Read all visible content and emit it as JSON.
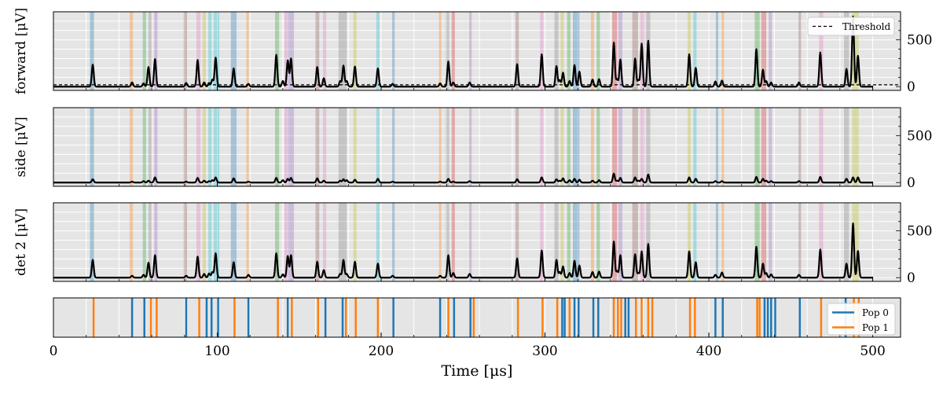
{
  "chart_data": {
    "type": "line",
    "xlabel": "Time [μs]",
    "xlim": [
      0,
      517
    ],
    "xticks": [
      0,
      100,
      200,
      300,
      400,
      500
    ],
    "grid": true,
    "colors": {
      "background": "#e5e5e5",
      "grid": "#ffffff",
      "signal": "#000000",
      "threshold": "#000000",
      "pop0": "#1f77b4",
      "pop1": "#ff7f0e"
    },
    "band_palette": [
      "#1f77b4",
      "#ff7f0e",
      "#2ca02c",
      "#d62728",
      "#9467bd",
      "#8c564b",
      "#e377c2",
      "#7f7f7f",
      "#bcbd22",
      "#17becf"
    ],
    "spike_bands": [
      {
        "x": 23.5,
        "w": 2.5,
        "c": 0
      },
      {
        "x": 47.5,
        "w": 2,
        "c": 1
      },
      {
        "x": 55.5,
        "w": 2,
        "c": 2
      },
      {
        "x": 59,
        "w": 2,
        "c": 7
      },
      {
        "x": 62.5,
        "w": 2,
        "c": 4
      },
      {
        "x": 80.5,
        "w": 2,
        "c": 5
      },
      {
        "x": 88.5,
        "w": 2.5,
        "c": 6
      },
      {
        "x": 92,
        "w": 2,
        "c": 8
      },
      {
        "x": 95.5,
        "w": 2,
        "c": 9
      },
      {
        "x": 99.5,
        "w": 3.5,
        "c": 9
      },
      {
        "x": 110,
        "w": 3.5,
        "c": 0
      },
      {
        "x": 118.5,
        "w": 1.5,
        "c": 1
      },
      {
        "x": 136.5,
        "w": 2.5,
        "c": 2
      },
      {
        "x": 142,
        "w": 2,
        "c": 6
      },
      {
        "x": 145,
        "w": 3.5,
        "c": 4
      },
      {
        "x": 161,
        "w": 2.5,
        "c": 5
      },
      {
        "x": 165.5,
        "w": 2,
        "c": 6
      },
      {
        "x": 176.5,
        "w": 5,
        "c": 7
      },
      {
        "x": 184,
        "w": 2,
        "c": 8
      },
      {
        "x": 198,
        "w": 2,
        "c": 9
      },
      {
        "x": 207.5,
        "w": 1.5,
        "c": 0
      },
      {
        "x": 236,
        "w": 1.5,
        "c": 1
      },
      {
        "x": 240.5,
        "w": 2,
        "c": 7
      },
      {
        "x": 244,
        "w": 2,
        "c": 3
      },
      {
        "x": 254.5,
        "w": 1.5,
        "c": 4
      },
      {
        "x": 283,
        "w": 2,
        "c": 5
      },
      {
        "x": 298,
        "w": 2,
        "c": 6
      },
      {
        "x": 307,
        "w": 2.5,
        "c": 7
      },
      {
        "x": 310.5,
        "w": 2,
        "c": 8
      },
      {
        "x": 314.5,
        "w": 2,
        "c": 2
      },
      {
        "x": 319,
        "w": 4,
        "c": 0
      },
      {
        "x": 329,
        "w": 2,
        "c": 1
      },
      {
        "x": 332.5,
        "w": 2,
        "c": 2
      },
      {
        "x": 342.5,
        "w": 3,
        "c": 3
      },
      {
        "x": 346,
        "w": 2.5,
        "c": 4
      },
      {
        "x": 355,
        "w": 3.5,
        "c": 5
      },
      {
        "x": 359.5,
        "w": 2.5,
        "c": 6
      },
      {
        "x": 363,
        "w": 2.5,
        "c": 7
      },
      {
        "x": 388,
        "w": 2,
        "c": 8
      },
      {
        "x": 391.5,
        "w": 2,
        "c": 9
      },
      {
        "x": 405,
        "w": 1.5,
        "c": 0
      },
      {
        "x": 408.5,
        "w": 1.5,
        "c": 1
      },
      {
        "x": 429.5,
        "w": 3,
        "c": 2
      },
      {
        "x": 433.5,
        "w": 3,
        "c": 3
      },
      {
        "x": 437.5,
        "w": 2,
        "c": 4
      },
      {
        "x": 455.5,
        "w": 1.5,
        "c": 5
      },
      {
        "x": 468.5,
        "w": 2.5,
        "c": 6
      },
      {
        "x": 484,
        "w": 3,
        "c": 7
      },
      {
        "x": 489.5,
        "w": 4,
        "c": 8
      }
    ],
    "spikes": [
      {
        "t": 24,
        "a": [
          235,
          35,
          190
        ]
      },
      {
        "t": 48,
        "a": [
          45,
          10,
          20
        ]
      },
      {
        "t": 55,
        "a": [
          35,
          15,
          30
        ]
      },
      {
        "t": 58,
        "a": [
          210,
          20,
          160
        ]
      },
      {
        "t": 62,
        "a": [
          295,
          55,
          240
        ]
      },
      {
        "t": 81,
        "a": [
          40,
          10,
          20
        ]
      },
      {
        "t": 88,
        "a": [
          285,
          50,
          225
        ]
      },
      {
        "t": 92,
        "a": [
          45,
          20,
          40
        ]
      },
      {
        "t": 95,
        "a": [
          40,
          15,
          45
        ]
      },
      {
        "t": 97,
        "a": [
          75,
          25,
          60
        ]
      },
      {
        "t": 99,
        "a": [
          310,
          55,
          260
        ]
      },
      {
        "t": 110,
        "a": [
          195,
          45,
          165
        ]
      },
      {
        "t": 119,
        "a": [
          30,
          10,
          30
        ]
      },
      {
        "t": 136,
        "a": [
          340,
          50,
          260
        ]
      },
      {
        "t": 140,
        "a": [
          60,
          25,
          35
        ]
      },
      {
        "t": 143,
        "a": [
          280,
          40,
          230
        ]
      },
      {
        "t": 145,
        "a": [
          300,
          50,
          240
        ]
      },
      {
        "t": 161,
        "a": [
          210,
          45,
          170
        ]
      },
      {
        "t": 165,
        "a": [
          90,
          20,
          80
        ]
      },
      {
        "t": 175,
        "a": [
          60,
          20,
          40
        ]
      },
      {
        "t": 177,
        "a": [
          225,
          35,
          190
        ]
      },
      {
        "t": 179,
        "a": [
          60,
          25,
          40
        ]
      },
      {
        "t": 184,
        "a": [
          215,
          30,
          170
        ]
      },
      {
        "t": 198,
        "a": [
          195,
          40,
          150
        ]
      },
      {
        "t": 207,
        "a": [
          30,
          10,
          20
        ]
      },
      {
        "t": 236,
        "a": [
          35,
          10,
          20
        ]
      },
      {
        "t": 241,
        "a": [
          270,
          40,
          240
        ]
      },
      {
        "t": 244,
        "a": [
          45,
          10,
          50
        ]
      },
      {
        "t": 254,
        "a": [
          45,
          15,
          40
        ]
      },
      {
        "t": 283,
        "a": [
          240,
          35,
          205
        ]
      },
      {
        "t": 298,
        "a": [
          345,
          55,
          290
        ]
      },
      {
        "t": 307,
        "a": [
          220,
          35,
          190
        ]
      },
      {
        "t": 309,
        "a": [
          70,
          20,
          60
        ]
      },
      {
        "t": 311,
        "a": [
          150,
          45,
          120
        ]
      },
      {
        "t": 315,
        "a": [
          60,
          25,
          50
        ]
      },
      {
        "t": 318,
        "a": [
          230,
          40,
          180
        ]
      },
      {
        "t": 321,
        "a": [
          160,
          30,
          130
        ]
      },
      {
        "t": 329,
        "a": [
          75,
          20,
          60
        ]
      },
      {
        "t": 333,
        "a": [
          80,
          25,
          65
        ]
      },
      {
        "t": 342,
        "a": [
          470,
          95,
          385
        ]
      },
      {
        "t": 344,
        "a": [
          80,
          20,
          70
        ]
      },
      {
        "t": 346,
        "a": [
          290,
          50,
          240
        ]
      },
      {
        "t": 355,
        "a": [
          300,
          55,
          250
        ]
      },
      {
        "t": 357,
        "a": [
          70,
          20,
          50
        ]
      },
      {
        "t": 359,
        "a": [
          460,
          40,
          280
        ]
      },
      {
        "t": 363,
        "a": [
          490,
          85,
          360
        ]
      },
      {
        "t": 388,
        "a": [
          345,
          55,
          280
        ]
      },
      {
        "t": 392,
        "a": [
          200,
          40,
          165
        ]
      },
      {
        "t": 404,
        "a": [
          55,
          15,
          30
        ]
      },
      {
        "t": 408,
        "a": [
          65,
          15,
          55
        ]
      },
      {
        "t": 429,
        "a": [
          400,
          60,
          330
        ]
      },
      {
        "t": 433,
        "a": [
          180,
          40,
          150
        ]
      },
      {
        "t": 435,
        "a": [
          60,
          20,
          50
        ]
      },
      {
        "t": 438,
        "a": [
          45,
          15,
          35
        ]
      },
      {
        "t": 455,
        "a": [
          45,
          15,
          30
        ]
      },
      {
        "t": 468,
        "a": [
          365,
          60,
          300
        ]
      },
      {
        "t": 484,
        "a": [
          190,
          40,
          150
        ]
      },
      {
        "t": 488,
        "a": [
          750,
          55,
          580
        ]
      },
      {
        "t": 491,
        "a": [
          330,
          55,
          285
        ]
      }
    ],
    "events": [
      {
        "t": 24.5,
        "pop": 1
      },
      {
        "t": 48,
        "pop": 0
      },
      {
        "t": 55.5,
        "pop": 0
      },
      {
        "t": 59.5,
        "pop": 1
      },
      {
        "t": 63,
        "pop": 1
      },
      {
        "t": 81,
        "pop": 0
      },
      {
        "t": 89,
        "pop": 1
      },
      {
        "t": 93.5,
        "pop": 0
      },
      {
        "t": 96.5,
        "pop": 0
      },
      {
        "t": 100.5,
        "pop": 0
      },
      {
        "t": 110.5,
        "pop": 1
      },
      {
        "t": 119,
        "pop": 0
      },
      {
        "t": 137,
        "pop": 1
      },
      {
        "t": 143,
        "pop": 0
      },
      {
        "t": 145.5,
        "pop": 1
      },
      {
        "t": 161.5,
        "pop": 1
      },
      {
        "t": 166,
        "pop": 0
      },
      {
        "t": 176.5,
        "pop": 0
      },
      {
        "t": 178.5,
        "pop": 1
      },
      {
        "t": 184.5,
        "pop": 1
      },
      {
        "t": 198,
        "pop": 1
      },
      {
        "t": 207.5,
        "pop": 0
      },
      {
        "t": 236,
        "pop": 0
      },
      {
        "t": 241,
        "pop": 1
      },
      {
        "t": 244.5,
        "pop": 0
      },
      {
        "t": 254.5,
        "pop": 0
      },
      {
        "t": 256.5,
        "pop": 1
      },
      {
        "t": 283.5,
        "pop": 1
      },
      {
        "t": 298.5,
        "pop": 1
      },
      {
        "t": 307.5,
        "pop": 1
      },
      {
        "t": 310.5,
        "pop": 0
      },
      {
        "t": 312,
        "pop": 0
      },
      {
        "t": 315,
        "pop": 1
      },
      {
        "t": 318,
        "pop": 0
      },
      {
        "t": 320.5,
        "pop": 0
      },
      {
        "t": 329.5,
        "pop": 0
      },
      {
        "t": 332.5,
        "pop": 0
      },
      {
        "t": 342,
        "pop": 1
      },
      {
        "t": 344.5,
        "pop": 1
      },
      {
        "t": 346.5,
        "pop": 1
      },
      {
        "t": 349,
        "pop": 0
      },
      {
        "t": 351,
        "pop": 0
      },
      {
        "t": 355.5,
        "pop": 1
      },
      {
        "t": 359,
        "pop": 1
      },
      {
        "t": 363,
        "pop": 1
      },
      {
        "t": 365.5,
        "pop": 1
      },
      {
        "t": 388.5,
        "pop": 1
      },
      {
        "t": 391.5,
        "pop": 1
      },
      {
        "t": 404,
        "pop": 0
      },
      {
        "t": 408.5,
        "pop": 0
      },
      {
        "t": 429.5,
        "pop": 1
      },
      {
        "t": 431,
        "pop": 1
      },
      {
        "t": 434,
        "pop": 0
      },
      {
        "t": 436,
        "pop": 0
      },
      {
        "t": 438,
        "pop": 0
      },
      {
        "t": 440.5,
        "pop": 0
      },
      {
        "t": 455.5,
        "pop": 0
      },
      {
        "t": 468.5,
        "pop": 1
      },
      {
        "t": 483.5,
        "pop": 0
      },
      {
        "t": 488.5,
        "pop": 1
      },
      {
        "t": 491.5,
        "pop": 1
      }
    ],
    "panels": [
      {
        "ylabel": "forward [μV]",
        "ylim": [
          -40,
          800
        ],
        "yticks": [
          0,
          500
        ],
        "amp_index": 0,
        "threshold": 20
      },
      {
        "ylabel": "side [μV]",
        "ylim": [
          -40,
          800
        ],
        "yticks": [
          0,
          500
        ],
        "amp_index": 1
      },
      {
        "ylabel": "det 2 [μV]",
        "ylim": [
          -40,
          800
        ],
        "yticks": [
          0,
          500
        ],
        "amp_index": 2
      }
    ],
    "legend_top": {
      "label": "Threshold",
      "placement": "upper right"
    },
    "legend_bottom": {
      "placement": "lower right",
      "entries": [
        "Pop 0",
        "Pop 1"
      ]
    }
  }
}
